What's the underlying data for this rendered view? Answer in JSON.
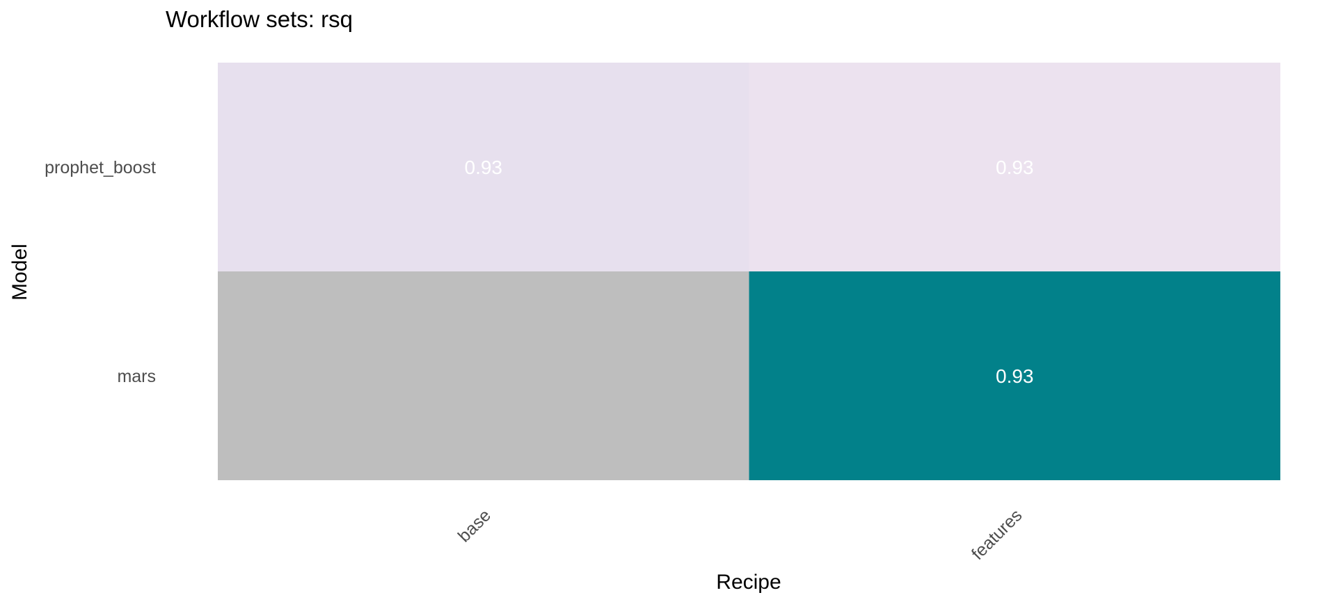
{
  "chart_data": {
    "type": "heatmap",
    "title": "Workflow sets: rsq",
    "xlabel": "Recipe",
    "ylabel": "Model",
    "x_categories": [
      "base",
      "features"
    ],
    "y_categories": [
      "prophet_boost",
      "mars"
    ],
    "cells": [
      {
        "model": "prophet_boost",
        "recipe": "base",
        "label": "0.93",
        "color": "#e7e0ee"
      },
      {
        "model": "prophet_boost",
        "recipe": "features",
        "label": "0.93",
        "color": "#ece2ef"
      },
      {
        "model": "mars",
        "recipe": "base",
        "label": "",
        "color": "#bebebe"
      },
      {
        "model": "mars",
        "recipe": "features",
        "label": "0.93",
        "color": "#02818a"
      }
    ],
    "missing_color": "#bebebe",
    "grid": false,
    "legend": "none"
  }
}
